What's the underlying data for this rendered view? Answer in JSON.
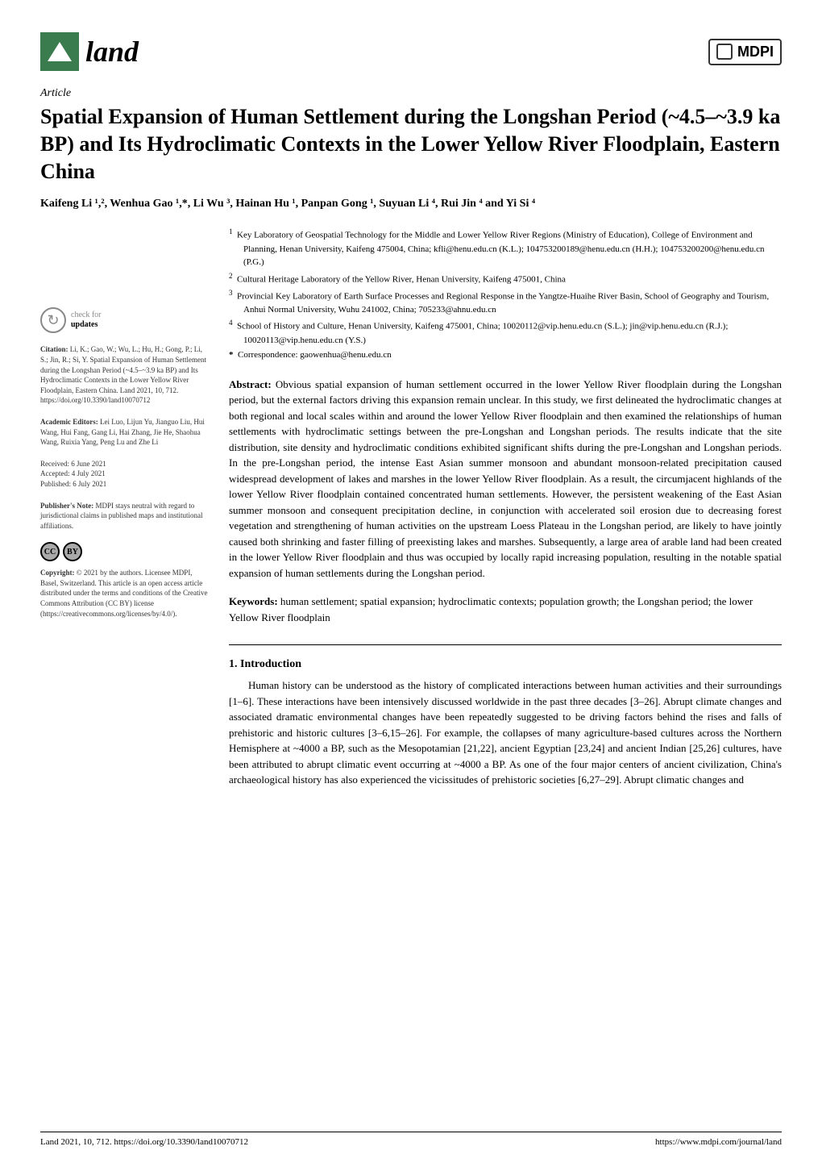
{
  "journal": {
    "name": "land",
    "publisher": "MDPI"
  },
  "article": {
    "type": "Article",
    "title": "Spatial Expansion of Human Settlement during the Longshan Period (~4.5–~3.9 ka BP) and Its Hydroclimatic Contexts in the Lower Yellow River Floodplain, Eastern China",
    "authors": "Kaifeng Li ¹,², Wenhua Gao ¹,*, Li Wu ³, Hainan Hu ¹, Panpan Gong ¹, Suyuan Li ⁴, Rui Jin ⁴ and Yi Si ⁴"
  },
  "affiliations": {
    "1": "Key Laboratory of Geospatial Technology for the Middle and Lower Yellow River Regions (Ministry of Education), College of Environment and Planning, Henan University, Kaifeng 475004, China; kfli@henu.edu.cn (K.L.); 104753200189@henu.edu.cn (H.H.); 104753200200@henu.edu.cn (P.G.)",
    "2": "Cultural Heritage Laboratory of the Yellow River, Henan University, Kaifeng 475001, China",
    "3": "Provincial Key Laboratory of Earth Surface Processes and Regional Response in the Yangtze-Huaihe River Basin, School of Geography and Tourism, Anhui Normal University, Wuhu 241002, China; 705233@ahnu.edu.cn",
    "4": "School of History and Culture, Henan University, Kaifeng 475001, China; 10020112@vip.henu.edu.cn (S.L.); jin@vip.henu.edu.cn (R.J.); 10020113@vip.henu.edu.cn (Y.S.)",
    "correspondence": "Correspondence: gaowenhua@henu.edu.cn"
  },
  "sidebar": {
    "check_updates_line1": "check for",
    "check_updates_line2": "updates",
    "citation_label": "Citation:",
    "citation": "Li, K.; Gao, W.; Wu, L.; Hu, H.; Gong, P.; Li, S.; Jin, R.; Si, Y. Spatial Expansion of Human Settlement during the Longshan Period (~4.5–~3.9 ka BP) and Its Hydroclimatic Contexts in the Lower Yellow River Floodplain, Eastern China. Land 2021, 10, 712. https://doi.org/10.3390/land10070712",
    "editors_label": "Academic Editors:",
    "editors": "Lei Luo, Lijun Yu, Jianguo Liu, Hui Wang, Hui Fang, Gang Li, Hai Zhang, Jie He, Shaohua Wang, Ruixia Yang, Peng Lu and Zhe Li",
    "received_label": "Received:",
    "received": "6 June 2021",
    "accepted_label": "Accepted:",
    "accepted": "4 July 2021",
    "published_label": "Published:",
    "published": "6 July 2021",
    "publishers_note_label": "Publisher's Note:",
    "publishers_note": "MDPI stays neutral with regard to jurisdictional claims in published maps and institutional affiliations.",
    "cc_text": "CC",
    "by_text": "BY",
    "copyright_label": "Copyright:",
    "copyright": "© 2021 by the authors. Licensee MDPI, Basel, Switzerland. This article is an open access article distributed under the terms and conditions of the Creative Commons Attribution (CC BY) license (https://creativecommons.org/licenses/by/4.0/)."
  },
  "abstract": {
    "label": "Abstract:",
    "text": "Obvious spatial expansion of human settlement occurred in the lower Yellow River floodplain during the Longshan period, but the external factors driving this expansion remain unclear. In this study, we first delineated the hydroclimatic changes at both regional and local scales within and around the lower Yellow River floodplain and then examined the relationships of human settlements with hydroclimatic settings between the pre-Longshan and Longshan periods. The results indicate that the site distribution, site density and hydroclimatic conditions exhibited significant shifts during the pre-Longshan and Longshan periods. In the pre-Longshan period, the intense East Asian summer monsoon and abundant monsoon-related precipitation caused widespread development of lakes and marshes in the lower Yellow River floodplain. As a result, the circumjacent highlands of the lower Yellow River floodplain contained concentrated human settlements. However, the persistent weakening of the East Asian summer monsoon and consequent precipitation decline, in conjunction with accelerated soil erosion due to decreasing forest vegetation and strengthening of human activities on the upstream Loess Plateau in the Longshan period, are likely to have jointly caused both shrinking and faster filling of preexisting lakes and marshes. Subsequently, a large area of arable land had been created in the lower Yellow River floodplain and thus was occupied by locally rapid increasing population, resulting in the notable spatial expansion of human settlements during the Longshan period."
  },
  "keywords": {
    "label": "Keywords:",
    "text": "human settlement; spatial expansion; hydroclimatic contexts; population growth; the Longshan period; the lower Yellow River floodplain"
  },
  "section1": {
    "heading": "1. Introduction",
    "body": "Human history can be understood as the history of complicated interactions between human activities and their surroundings [1–6]. These interactions have been intensively discussed worldwide in the past three decades [3–26]. Abrupt climate changes and associated dramatic environmental changes have been repeatedly suggested to be driving factors behind the rises and falls of prehistoric and historic cultures [3–6,15–26]. For example, the collapses of many agriculture-based cultures across the Northern Hemisphere at ~4000 a BP, such as the Mesopotamian [21,22], ancient Egyptian [23,24] and ancient Indian [25,26] cultures, have been attributed to abrupt climatic event occurring at ~4000 a BP. As one of the four major centers of ancient civilization, China's archaeological history has also experienced the vicissitudes of prehistoric societies [6,27–29]. Abrupt climatic changes and"
  },
  "footer": {
    "left": "Land 2021, 10, 712. https://doi.org/10.3390/land10070712",
    "right": "https://www.mdpi.com/journal/land"
  }
}
